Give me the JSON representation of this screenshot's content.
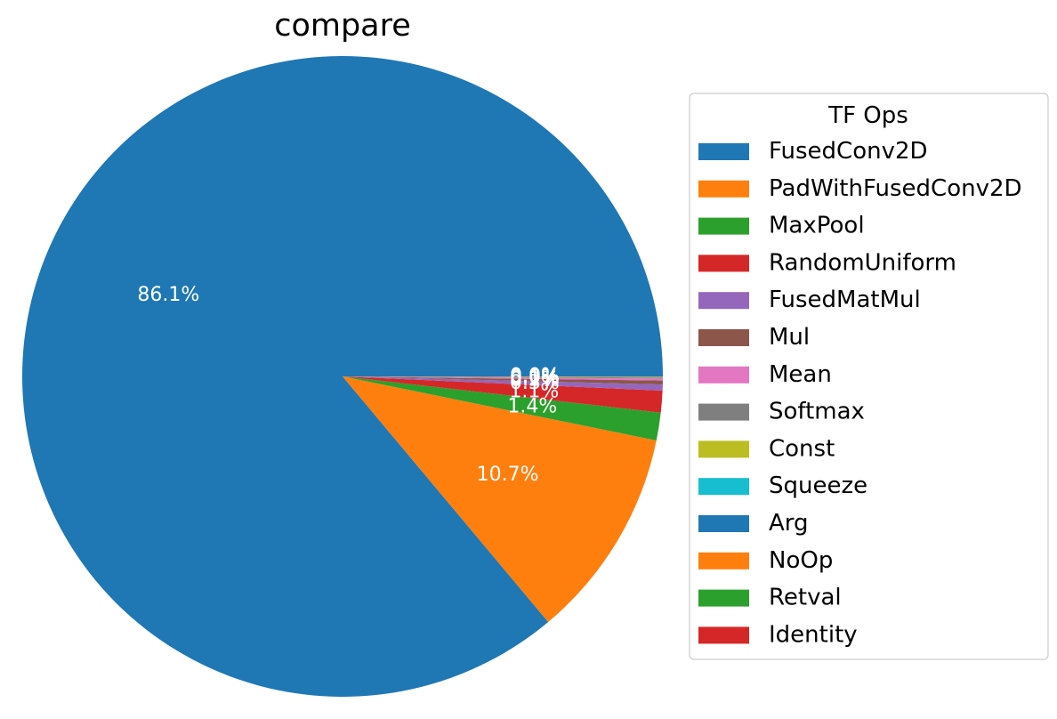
{
  "chart_data": {
    "type": "pie",
    "title": "compare",
    "legend_title": "TF Ops",
    "legend_position": "right",
    "start_angle_deg": 0,
    "direction": "counterclockwise",
    "categories": [
      "FusedConv2D",
      "PadWithFusedConv2D",
      "MaxPool",
      "RandomUniform",
      "FusedMatMul",
      "Mul",
      "Mean",
      "Softmax",
      "Const",
      "Squeeze",
      "Arg",
      "NoOp",
      "Retval",
      "Identity"
    ],
    "values": [
      86.1,
      10.7,
      1.4,
      1.1,
      0.3,
      0.2,
      0.1,
      0.05,
      0.02,
      0.01,
      0.01,
      0.005,
      0.005,
      0.005
    ],
    "labels": [
      "86.1%",
      "10.7%",
      "1.4%",
      "1.1%",
      "0.3%",
      "0.2%",
      "0.1%",
      "0.0%",
      "0.0%",
      "0.0%",
      "0.0%",
      "0.0%",
      "0.0%",
      "0.0%"
    ],
    "colors": [
      "#1f77b4",
      "#ff7f0e",
      "#2ca02c",
      "#d62728",
      "#9467bd",
      "#8c564b",
      "#e377c2",
      "#7f7f7f",
      "#bcbd22",
      "#17becf",
      "#1f77b4",
      "#ff7f0e",
      "#2ca02c",
      "#d62728"
    ]
  }
}
